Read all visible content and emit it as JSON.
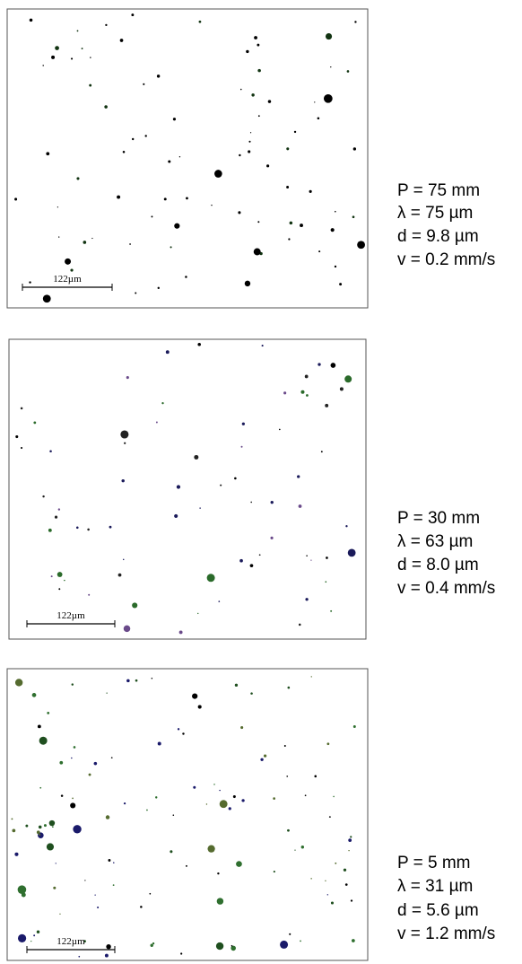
{
  "panels": [
    {
      "scale_bar": "122µm",
      "params": [
        "P = 75 mm",
        "λ = 75 µm",
        "d = 9.8 µm",
        "v = 0.2 mm/s"
      ]
    },
    {
      "scale_bar": "122µm",
      "params": [
        "P = 30 mm",
        "λ = 63 µm",
        "d = 8.0 µm",
        "v = 0.4 mm/s"
      ]
    },
    {
      "scale_bar": "122µm",
      "params": [
        "P = 5 mm",
        "λ = 31 µm",
        "d = 5.6 µm",
        "v = 1.2 mm/s"
      ]
    }
  ]
}
